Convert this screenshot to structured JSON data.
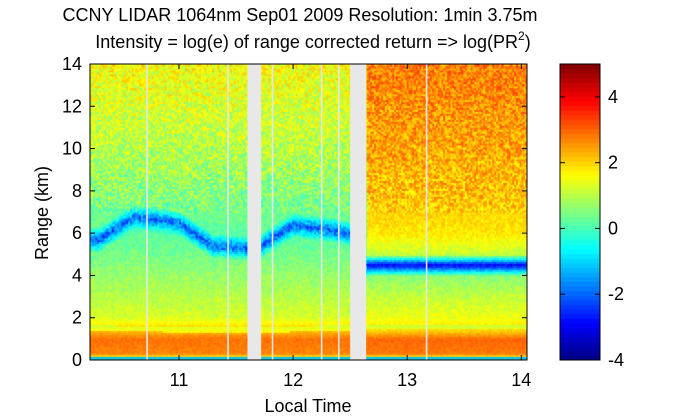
{
  "chart_data": {
    "type": "heatmap",
    "title_line1": "CCNY LIDAR 1064nm Sep01 2009 Resolution: 1min 3.75m",
    "title_line2_prefix": "Intensity = log(e) of range corrected return => log(PR",
    "title_line2_sup": "2",
    "title_line2_suffix": ")",
    "xlabel": "Local Time",
    "ylabel": "Range (km)",
    "xlim": [
      10.22,
      14.05
    ],
    "ylim": [
      0,
      14
    ],
    "x_ticks": [
      11,
      12,
      13,
      14
    ],
    "x_tick_labels": [
      "11",
      "12",
      "13",
      "14"
    ],
    "y_ticks": [
      0,
      2,
      4,
      6,
      8,
      10,
      12,
      14
    ],
    "y_tick_labels": [
      "0",
      "2",
      "4",
      "6",
      "8",
      "10",
      "12",
      "14"
    ],
    "colorbar": {
      "clim": [
        -4,
        5
      ],
      "ticks": [
        -4,
        -2,
        0,
        2,
        4
      ],
      "tick_labels": [
        "-4",
        "-2",
        "0",
        "2",
        "4"
      ],
      "colormap": "jet"
    },
    "data_gaps": [
      [
        11.6,
        11.72
      ],
      [
        12.5,
        12.64
      ]
    ],
    "missing_profiles": [
      10.72,
      11.43,
      11.82,
      12.25,
      12.4,
      13.17
    ],
    "aerosol_layer_top_km": [
      [
        10.22,
        1.4
      ],
      [
        11.6,
        1.3
      ],
      [
        12.64,
        1.45
      ],
      [
        14.05,
        1.45
      ]
    ],
    "cloud_layer_km": [
      [
        10.3,
        5.7
      ],
      [
        10.6,
        6.8
      ],
      [
        11.0,
        6.5
      ],
      [
        11.3,
        5.4
      ],
      [
        11.6,
        5.3
      ],
      [
        11.72,
        5.4
      ],
      [
        12.0,
        6.4
      ],
      [
        12.3,
        6.2
      ],
      [
        12.5,
        6.0
      ],
      [
        12.64,
        4.4
      ],
      [
        12.9,
        4.7
      ],
      [
        13.1,
        5.2
      ],
      [
        13.3,
        4.6
      ],
      [
        13.5,
        4.9
      ],
      [
        13.7,
        4.6
      ],
      [
        14.05,
        4.5
      ]
    ],
    "intensity_profiles": [
      {
        "period": "before 12.64",
        "range_km": [
          0,
          0.3,
          1.0,
          1.4,
          2.0,
          3.0,
          4.0,
          5.0,
          6.0,
          7.5,
          10.0,
          14.0
        ],
        "value": [
          0.5,
          2.7,
          2.9,
          2.2,
          1.3,
          1.0,
          0.7,
          0.4,
          0.2,
          0.5,
          1.0,
          1.6
        ]
      },
      {
        "period": "after 12.64",
        "range_km": [
          0,
          0.3,
          1.0,
          1.4,
          2.0,
          3.0,
          4.0,
          4.5,
          5.0,
          6.0,
          8.0,
          10.0,
          12.0,
          14.0
        ],
        "value": [
          0.5,
          2.8,
          3.0,
          2.0,
          1.5,
          1.1,
          0.6,
          -3.0,
          1.1,
          1.8,
          2.2,
          2.4,
          2.6,
          2.8
        ]
      }
    ]
  }
}
